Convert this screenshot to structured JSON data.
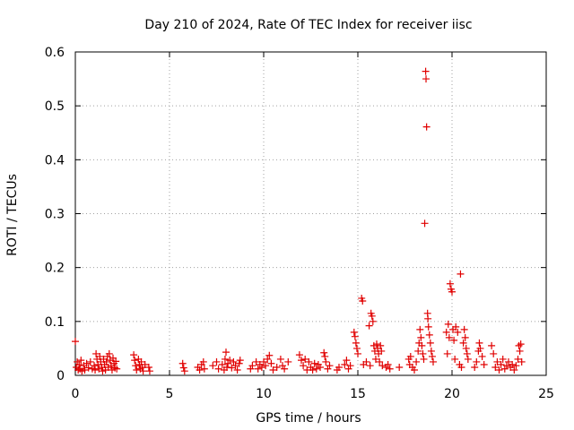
{
  "chart_data": {
    "type": "scatter",
    "title": "Day 210 of 2024, Rate Of TEC Index for receiver iisc",
    "xlabel": "GPS time / hours",
    "ylabel": "ROTI / TECUs",
    "xlim": [
      0,
      25
    ],
    "ylim": [
      0,
      0.6
    ],
    "xticks": [
      0,
      5,
      10,
      15,
      20,
      25
    ],
    "yticks": [
      0,
      0.1,
      0.2,
      0.3,
      0.4,
      0.5,
      0.6
    ],
    "xtick_labels": [
      "0",
      "5",
      "10",
      "15",
      "20",
      "25"
    ],
    "ytick_labels": [
      "0",
      "0.1",
      "0.2",
      "0.3",
      "0.4",
      "0.5",
      "0.6"
    ],
    "grid": true,
    "marker": "plus",
    "color": "#e00000",
    "series": [
      {
        "name": "ROTI",
        "points": [
          [
            0.0,
            0.063
          ],
          [
            0.05,
            0.015
          ],
          [
            0.1,
            0.025
          ],
          [
            0.15,
            0.01
          ],
          [
            0.2,
            0.02
          ],
          [
            0.25,
            0.012
          ],
          [
            0.3,
            0.028
          ],
          [
            0.35,
            0.008
          ],
          [
            0.45,
            0.018
          ],
          [
            0.5,
            0.01
          ],
          [
            0.6,
            0.022
          ],
          [
            0.7,
            0.014
          ],
          [
            0.8,
            0.025
          ],
          [
            0.9,
            0.012
          ],
          [
            1.0,
            0.018
          ],
          [
            1.05,
            0.01
          ],
          [
            1.1,
            0.04
          ],
          [
            1.15,
            0.03
          ],
          [
            1.2,
            0.02
          ],
          [
            1.25,
            0.012
          ],
          [
            1.3,
            0.035
          ],
          [
            1.35,
            0.025
          ],
          [
            1.4,
            0.015
          ],
          [
            1.45,
            0.008
          ],
          [
            1.5,
            0.03
          ],
          [
            1.55,
            0.02
          ],
          [
            1.6,
            0.01
          ],
          [
            1.65,
            0.025
          ],
          [
            1.7,
            0.035
          ],
          [
            1.75,
            0.015
          ],
          [
            1.8,
            0.04
          ],
          [
            1.85,
            0.028
          ],
          [
            1.9,
            0.018
          ],
          [
            1.95,
            0.01
          ],
          [
            2.0,
            0.032
          ],
          [
            2.05,
            0.022
          ],
          [
            2.1,
            0.014
          ],
          [
            2.15,
            0.026
          ],
          [
            2.2,
            0.012
          ],
          [
            3.1,
            0.038
          ],
          [
            3.15,
            0.028
          ],
          [
            3.2,
            0.018
          ],
          [
            3.25,
            0.01
          ],
          [
            3.35,
            0.03
          ],
          [
            3.4,
            0.02
          ],
          [
            3.45,
            0.012
          ],
          [
            3.5,
            0.025
          ],
          [
            3.55,
            0.015
          ],
          [
            3.6,
            0.008
          ],
          [
            3.7,
            0.02
          ],
          [
            3.9,
            0.015
          ],
          [
            3.95,
            0.008
          ],
          [
            5.7,
            0.022
          ],
          [
            5.75,
            0.014
          ],
          [
            5.8,
            0.008
          ],
          [
            6.5,
            0.015
          ],
          [
            6.6,
            0.01
          ],
          [
            6.7,
            0.02
          ],
          [
            6.8,
            0.025
          ],
          [
            6.85,
            0.012
          ],
          [
            7.3,
            0.018
          ],
          [
            7.5,
            0.025
          ],
          [
            7.6,
            0.012
          ],
          [
            7.8,
            0.02
          ],
          [
            7.9,
            0.01
          ],
          [
            7.95,
            0.03
          ],
          [
            8.0,
            0.043
          ],
          [
            8.05,
            0.015
          ],
          [
            8.1,
            0.022
          ],
          [
            8.2,
            0.028
          ],
          [
            8.3,
            0.014
          ],
          [
            8.4,
            0.025
          ],
          [
            8.5,
            0.018
          ],
          [
            8.6,
            0.01
          ],
          [
            8.7,
            0.022
          ],
          [
            8.75,
            0.028
          ],
          [
            9.3,
            0.012
          ],
          [
            9.4,
            0.018
          ],
          [
            9.6,
            0.025
          ],
          [
            9.7,
            0.012
          ],
          [
            9.8,
            0.02
          ],
          [
            9.9,
            0.015
          ],
          [
            10.0,
            0.025
          ],
          [
            10.1,
            0.018
          ],
          [
            10.2,
            0.03
          ],
          [
            10.3,
            0.037
          ],
          [
            10.4,
            0.022
          ],
          [
            10.5,
            0.01
          ],
          [
            10.7,
            0.015
          ],
          [
            10.9,
            0.03
          ],
          [
            11.0,
            0.018
          ],
          [
            11.1,
            0.012
          ],
          [
            11.3,
            0.025
          ],
          [
            11.9,
            0.038
          ],
          [
            12.0,
            0.028
          ],
          [
            12.1,
            0.018
          ],
          [
            12.2,
            0.03
          ],
          [
            12.3,
            0.01
          ],
          [
            12.4,
            0.025
          ],
          [
            12.5,
            0.015
          ],
          [
            12.6,
            0.01
          ],
          [
            12.7,
            0.022
          ],
          [
            12.8,
            0.012
          ],
          [
            12.9,
            0.02
          ],
          [
            13.0,
            0.015
          ],
          [
            13.2,
            0.042
          ],
          [
            13.25,
            0.035
          ],
          [
            13.3,
            0.025
          ],
          [
            13.4,
            0.012
          ],
          [
            13.5,
            0.018
          ],
          [
            13.9,
            0.01
          ],
          [
            14.0,
            0.015
          ],
          [
            14.3,
            0.02
          ],
          [
            14.4,
            0.028
          ],
          [
            14.5,
            0.012
          ],
          [
            14.6,
            0.018
          ],
          [
            14.8,
            0.08
          ],
          [
            14.85,
            0.072
          ],
          [
            14.9,
            0.06
          ],
          [
            14.95,
            0.05
          ],
          [
            15.0,
            0.04
          ],
          [
            15.2,
            0.143
          ],
          [
            15.25,
            0.138
          ],
          [
            15.3,
            0.02
          ],
          [
            15.45,
            0.025
          ],
          [
            15.6,
            0.092
          ],
          [
            15.65,
            0.018
          ],
          [
            15.7,
            0.115
          ],
          [
            15.75,
            0.11
          ],
          [
            15.8,
            0.1
          ],
          [
            15.85,
            0.055
          ],
          [
            15.9,
            0.045
          ],
          [
            15.95,
            0.03
          ],
          [
            16.0,
            0.058
          ],
          [
            16.05,
            0.05
          ],
          [
            16.1,
            0.04
          ],
          [
            16.15,
            0.025
          ],
          [
            16.2,
            0.055
          ],
          [
            16.25,
            0.045
          ],
          [
            16.3,
            0.018
          ],
          [
            16.5,
            0.015
          ],
          [
            16.6,
            0.02
          ],
          [
            16.7,
            0.012
          ],
          [
            17.2,
            0.015
          ],
          [
            17.7,
            0.03
          ],
          [
            17.75,
            0.02
          ],
          [
            17.8,
            0.035
          ],
          [
            17.9,
            0.015
          ],
          [
            18.0,
            0.01
          ],
          [
            18.1,
            0.025
          ],
          [
            18.2,
            0.045
          ],
          [
            18.25,
            0.06
          ],
          [
            18.3,
            0.085
          ],
          [
            18.35,
            0.07
          ],
          [
            18.4,
            0.055
          ],
          [
            18.45,
            0.04
          ],
          [
            18.5,
            0.03
          ],
          [
            18.55,
            0.282
          ],
          [
            18.6,
            0.564
          ],
          [
            18.62,
            0.55
          ],
          [
            18.65,
            0.461
          ],
          [
            18.7,
            0.115
          ],
          [
            18.72,
            0.105
          ],
          [
            18.75,
            0.09
          ],
          [
            18.8,
            0.075
          ],
          [
            18.85,
            0.06
          ],
          [
            18.9,
            0.045
          ],
          [
            18.95,
            0.035
          ],
          [
            19.0,
            0.025
          ],
          [
            19.7,
            0.08
          ],
          [
            19.75,
            0.04
          ],
          [
            19.8,
            0.095
          ],
          [
            19.85,
            0.07
          ],
          [
            19.9,
            0.17
          ],
          [
            19.95,
            0.16
          ],
          [
            20.0,
            0.155
          ],
          [
            20.05,
            0.085
          ],
          [
            20.1,
            0.065
          ],
          [
            20.15,
            0.03
          ],
          [
            20.2,
            0.09
          ],
          [
            20.3,
            0.08
          ],
          [
            20.4,
            0.02
          ],
          [
            20.45,
            0.188
          ],
          [
            20.5,
            0.015
          ],
          [
            20.6,
            0.06
          ],
          [
            20.65,
            0.085
          ],
          [
            20.7,
            0.07
          ],
          [
            20.75,
            0.05
          ],
          [
            20.8,
            0.04
          ],
          [
            20.85,
            0.03
          ],
          [
            21.2,
            0.015
          ],
          [
            21.3,
            0.025
          ],
          [
            21.4,
            0.045
          ],
          [
            21.45,
            0.06
          ],
          [
            21.5,
            0.05
          ],
          [
            21.6,
            0.035
          ],
          [
            21.7,
            0.02
          ],
          [
            22.1,
            0.055
          ],
          [
            22.2,
            0.04
          ],
          [
            22.3,
            0.015
          ],
          [
            22.4,
            0.025
          ],
          [
            22.5,
            0.01
          ],
          [
            22.6,
            0.02
          ],
          [
            22.7,
            0.03
          ],
          [
            22.8,
            0.012
          ],
          [
            22.9,
            0.018
          ],
          [
            23.0,
            0.025
          ],
          [
            23.1,
            0.015
          ],
          [
            23.2,
            0.02
          ],
          [
            23.3,
            0.01
          ],
          [
            23.4,
            0.018
          ],
          [
            23.5,
            0.03
          ],
          [
            23.55,
            0.055
          ],
          [
            23.6,
            0.045
          ],
          [
            23.65,
            0.058
          ],
          [
            23.7,
            0.025
          ]
        ]
      }
    ]
  }
}
